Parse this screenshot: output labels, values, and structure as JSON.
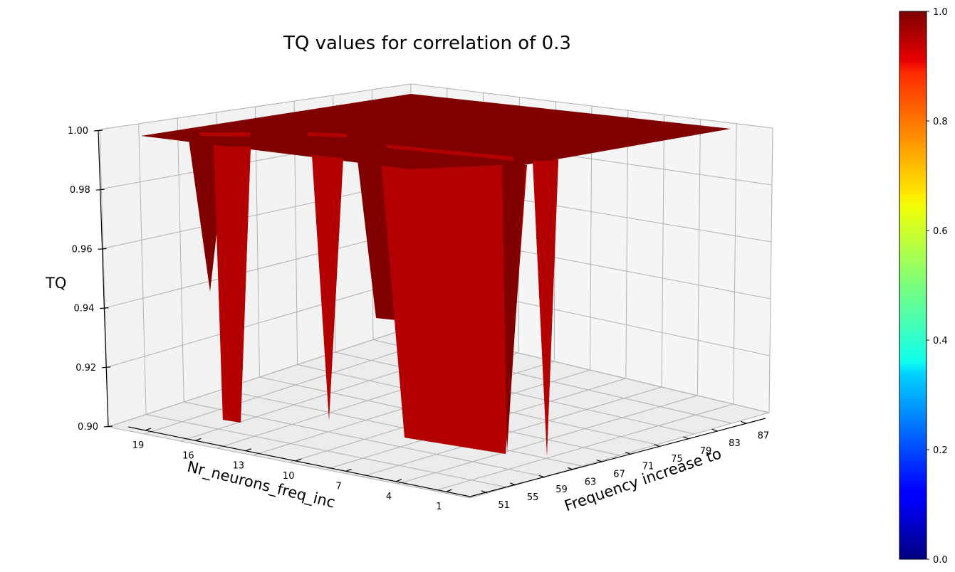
{
  "chart_data": {
    "type": "surface3d",
    "title": "TQ values for correlation of 0.3",
    "xlabel": "Frequency increase to",
    "ylabel": "Nr_neurons_freq_inc",
    "zlabel": "TQ",
    "x_ticks": [
      "51",
      "55",
      "59",
      "63",
      "67",
      "71",
      "75",
      "79",
      "83",
      "87"
    ],
    "y_ticks": [
      "19",
      "16",
      "13",
      "10",
      "7",
      "4",
      "1"
    ],
    "z_ticks": [
      "0.90",
      "0.92",
      "0.94",
      "0.96",
      "0.98",
      "1.00"
    ],
    "xlim": [
      50,
      90
    ],
    "ylim": [
      0,
      20
    ],
    "zlim": [
      0.9,
      1.0
    ],
    "surface_color": "#800000",
    "dip_color": "#b30000",
    "colormap": "jet",
    "colorbar_ticks": [
      "0.0",
      "0.2",
      "0.4",
      "0.6",
      "0.8",
      "1.0"
    ],
    "colorbar_range": [
      0.0,
      1.0
    ],
    "surface_value_plateau": 1.0,
    "dips": [
      {
        "x": 53,
        "y": 18,
        "min_tq": 0.947
      },
      {
        "x": 51,
        "y": 16,
        "min_tq": 0.902
      },
      {
        "x": 59,
        "y": 12,
        "min_tq": 0.902
      },
      {
        "x": 67,
        "y": 10,
        "min_tq": 0.935
      },
      {
        "x": 63,
        "y": 7,
        "min_tq": 0.9
      },
      {
        "x": 71,
        "y": 1,
        "min_tq": 0.9
      }
    ]
  }
}
